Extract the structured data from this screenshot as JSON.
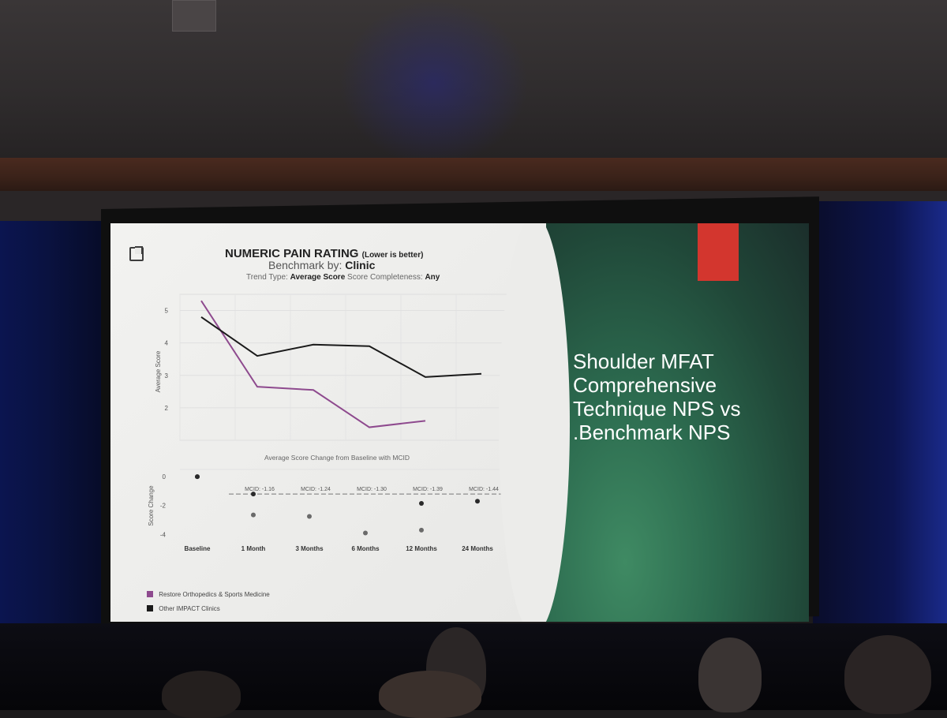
{
  "slide": {
    "title": "NUMERIC PAIN RATING",
    "title_note": "(Lower is better)",
    "benchmark_label": "Benchmark by:",
    "benchmark_value": "Clinic",
    "trend_label": "Trend Type:",
    "trend_value": "Average Score",
    "completeness_label": "Score Completeness:",
    "completeness_value": "Any",
    "right_text": "Shoulder MFAT Comprehensive Technique  NPS vs .Benchmark NPS",
    "colors": {
      "restore": "#8e4a8e",
      "other": "#2a2a2a",
      "accent_red": "#d3362e",
      "right_bg": "#2c6b4f"
    }
  },
  "chart_data": [
    {
      "type": "line",
      "title": "",
      "ylabel": "Average Score",
      "ylim": [
        1,
        5.5
      ],
      "yticks": [
        "5",
        "4",
        "3",
        "2"
      ],
      "categories": [
        "Baseline",
        "1 Month",
        "3 Months",
        "6 Months",
        "12 Months",
        "24 Months"
      ],
      "series": [
        {
          "name": "Restore Orthopedics & Sports Medicine",
          "values": [
            5.3,
            2.65,
            2.55,
            1.4,
            1.6,
            null
          ]
        },
        {
          "name": "Other IMPACT Clinics",
          "values": [
            4.8,
            3.6,
            3.95,
            3.9,
            2.95,
            3.05
          ]
        }
      ]
    },
    {
      "type": "scatter",
      "title": "Average Score Change from Baseline with MCID",
      "ylabel": "Score Change",
      "ylim": [
        -4.2,
        0.5
      ],
      "yticks": [
        "0",
        "-2",
        "-4"
      ],
      "categories": [
        "Baseline",
        "1 Month",
        "3 Months",
        "6 Months",
        "12 Months",
        "24 Months"
      ],
      "mcid_labels": [
        "MCID: -1.16",
        "MCID: -1.24",
        "MCID: -1.30",
        "MCID: -1.39",
        "MCID: -1.44"
      ],
      "mcid_value": -1.2,
      "series": [
        {
          "name": "Restore Orthopedics & Sports Medicine",
          "values": [
            0,
            -2.65,
            -2.75,
            -3.9,
            -3.7,
            null
          ]
        },
        {
          "name": "Other IMPACT Clinics",
          "values": [
            0,
            -1.2,
            null,
            null,
            -1.85,
            -1.7
          ]
        }
      ]
    }
  ],
  "legend": [
    {
      "label": "Restore Orthopedics & Sports Medicine",
      "color": "#8e4a8e"
    },
    {
      "label": "Other IMPACT Clinics",
      "color": "#1a1a1a"
    }
  ]
}
